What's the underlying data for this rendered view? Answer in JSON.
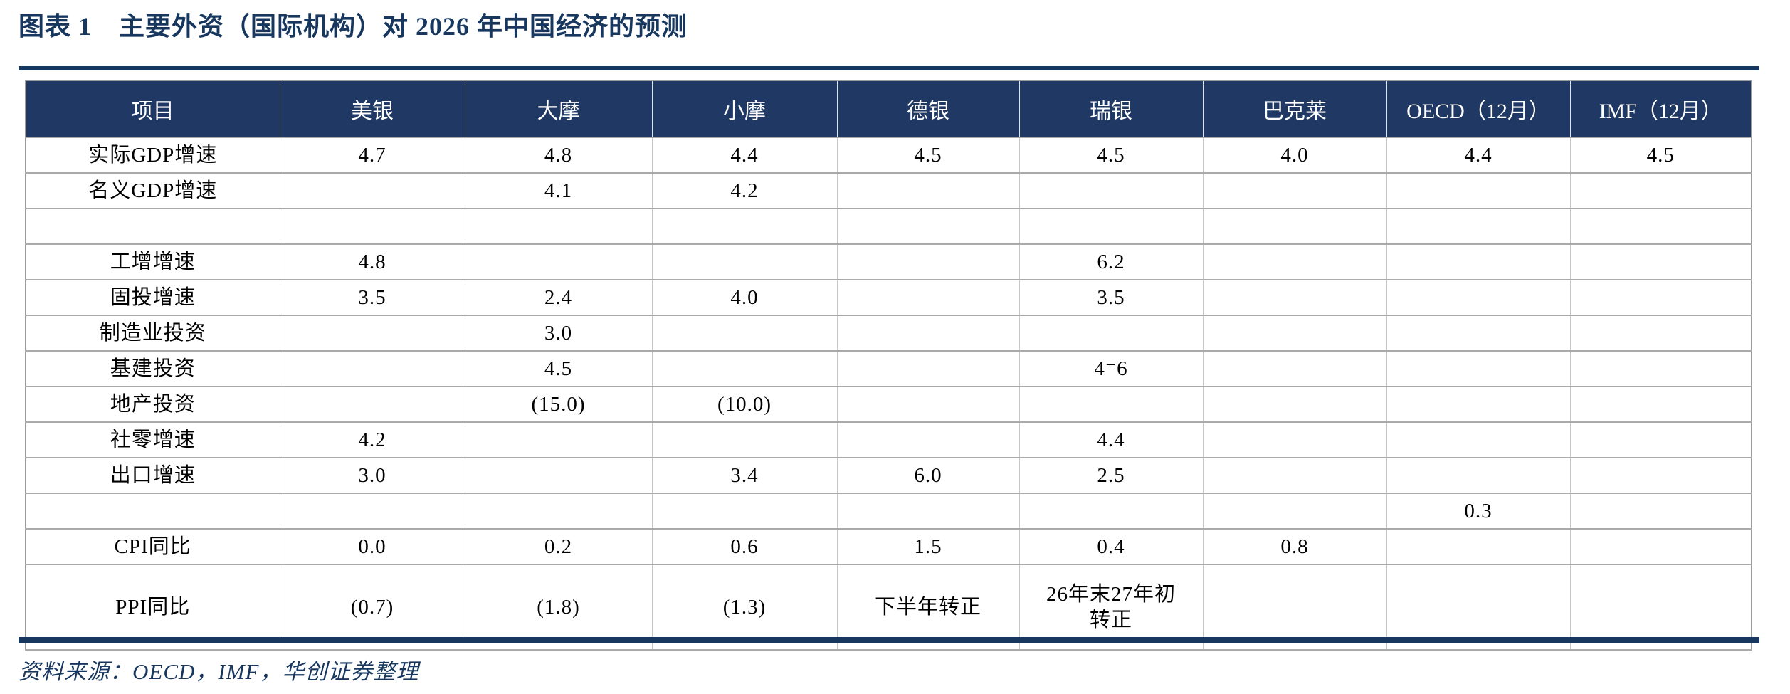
{
  "figure": {
    "label": "图表 1",
    "title": "主要外资（国际机构）对 2026 年中国经济的预测",
    "source": "资料来源：OECD，IMF，华创证券整理"
  },
  "colors": {
    "header_navy": "#1F3864",
    "title_navy": "#17375E",
    "negative_red": "#FF0000",
    "grid_gray": "#ABABAB"
  },
  "chart_data": {
    "type": "table",
    "title": "主要外资（国际机构）对 2026 年中国经济的预测",
    "note": "negative values shown as red numbers in parentheses",
    "columns": [
      "项目",
      "美银",
      "大摩",
      "小摩",
      "德银",
      "瑞银",
      "巴克莱",
      "OECD（12月）",
      "IMF（12月）"
    ],
    "rows": [
      {
        "label": "实际GDP增速",
        "cells": [
          "4.7",
          "4.8",
          "4.4",
          "4.5",
          "4.5",
          "4.0",
          "4.4",
          "4.5"
        ]
      },
      {
        "label": "名义GDP增速",
        "cells": [
          "",
          "4.1",
          "4.2",
          "",
          "",
          "",
          "",
          ""
        ]
      },
      {
        "label": "",
        "cells": [
          "",
          "",
          "",
          "",
          "",
          "",
          "",
          ""
        ]
      },
      {
        "label": "工增增速",
        "cells": [
          "4.8",
          "",
          "",
          "",
          "6.2",
          "",
          "",
          ""
        ]
      },
      {
        "label": "固投增速",
        "cells": [
          "3.5",
          "2.4",
          "4.0",
          "",
          "3.5",
          "",
          "",
          ""
        ]
      },
      {
        "label": "制造业投资",
        "cells": [
          "",
          "3.0",
          "",
          "",
          "",
          "",
          "",
          ""
        ]
      },
      {
        "label": "基建投资",
        "cells": [
          "",
          "4.5",
          "",
          "",
          "4⁻6",
          "",
          "",
          ""
        ]
      },
      {
        "label": "地产投资",
        "cells": [
          "",
          "(15.0)",
          "(10.0)",
          "",
          "",
          "",
          "",
          ""
        ]
      },
      {
        "label": "社零增速",
        "cells": [
          "4.2",
          "",
          "",
          "",
          "4.4",
          "",
          "",
          ""
        ]
      },
      {
        "label": "出口增速",
        "cells": [
          "3.0",
          "",
          "3.4",
          "6.0",
          "2.5",
          "",
          "",
          ""
        ]
      },
      {
        "label": "",
        "cells": [
          "",
          "",
          "",
          "",
          "",
          "",
          "0.3",
          ""
        ]
      },
      {
        "label": "CPI同比",
        "cells": [
          "0.0",
          "0.2",
          "0.6",
          "1.5",
          "0.4",
          "0.8",
          "",
          ""
        ]
      },
      {
        "label": "PPI同比",
        "cells": [
          "(0.7)",
          "(1.8)",
          "(1.3)",
          "下半年转正",
          "26年末27年初\n转正",
          "",
          "",
          ""
        ]
      }
    ]
  }
}
